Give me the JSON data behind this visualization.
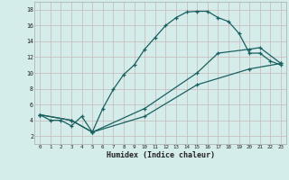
{
  "xlabel": "Humidex (Indice chaleur)",
  "ylabel": "",
  "bg_color": "#d4ecea",
  "grid_color_major": "#c8b8b8",
  "grid_color_minor": "#c0d8d8",
  "line_color": "#1a6060",
  "xlim": [
    -0.5,
    23.5
  ],
  "ylim": [
    1.0,
    19.0
  ],
  "xticks": [
    0,
    1,
    2,
    3,
    4,
    5,
    6,
    7,
    8,
    9,
    10,
    11,
    12,
    13,
    14,
    15,
    16,
    17,
    18,
    19,
    20,
    21,
    22,
    23
  ],
  "yticks": [
    2,
    4,
    6,
    8,
    10,
    12,
    14,
    16,
    18
  ],
  "curve1_x": [
    0,
    1,
    2,
    3,
    4,
    5,
    6,
    7,
    8,
    9,
    10,
    11,
    12,
    13,
    14,
    15,
    16,
    17,
    18,
    19,
    20,
    21,
    22,
    23
  ],
  "curve1_y": [
    4.7,
    4.0,
    4.0,
    3.3,
    4.5,
    2.5,
    5.5,
    7.9,
    9.8,
    11.0,
    13.0,
    14.5,
    16.0,
    17.0,
    17.7,
    17.8,
    17.8,
    17.0,
    16.5,
    15.0,
    12.5,
    12.5,
    11.5,
    11.0
  ],
  "curve2_x": [
    0,
    3,
    5,
    10,
    15,
    17,
    20,
    21,
    23
  ],
  "curve2_y": [
    4.7,
    4.0,
    2.5,
    5.5,
    10.0,
    12.5,
    13.0,
    13.2,
    11.2
  ],
  "curve3_x": [
    0,
    3,
    5,
    10,
    15,
    20,
    23
  ],
  "curve3_y": [
    4.7,
    4.0,
    2.5,
    4.5,
    8.5,
    10.5,
    11.2
  ]
}
